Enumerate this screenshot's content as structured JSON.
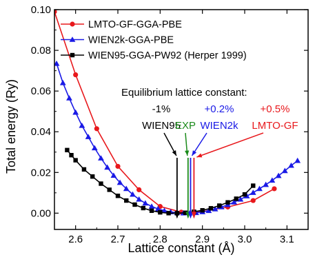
{
  "chart_data": {
    "type": "line",
    "title": "",
    "xlabel": "Lattice constant (Å)",
    "ylabel": "Total energy (Ry)",
    "xlim": [
      2.55,
      3.15
    ],
    "ylim": [
      -0.008,
      0.1
    ],
    "x_ticks": [
      2.6,
      2.7,
      2.8,
      2.9,
      3.0,
      3.1
    ],
    "x_tick_labels": [
      "2.6",
      "2.7",
      "2.8",
      "2.9",
      "3.0",
      "3.1"
    ],
    "y_ticks": [
      0.0,
      0.02,
      0.04,
      0.06,
      0.08,
      0.1
    ],
    "y_tick_labels": [
      "0.00",
      "0.02",
      "0.04",
      "0.06",
      "0.08",
      "0.10"
    ],
    "grid": false,
    "legend_position": "top-left",
    "series": [
      {
        "name": "LMTO-GF-GGA-PBE",
        "color": "#e8181c",
        "marker": "circle",
        "x": [
          2.55,
          2.6,
          2.65,
          2.7,
          2.75,
          2.8,
          2.85,
          2.9,
          2.96,
          3.02,
          3.07
        ],
        "y": [
          0.099,
          0.068,
          0.0415,
          0.023,
          0.0115,
          0.0033,
          0.0005,
          0.0008,
          0.003,
          0.0062,
          0.012
        ]
      },
      {
        "name": "WIEN2k-GGA-PBE",
        "color": "#1a1ae6",
        "marker": "triangle",
        "x": [
          2.555,
          2.57,
          2.585,
          2.6,
          2.615,
          2.63,
          2.645,
          2.66,
          2.675,
          2.69,
          2.705,
          2.72,
          2.735,
          2.75,
          2.765,
          2.78,
          2.795,
          2.81,
          2.825,
          2.84,
          2.855,
          2.87,
          2.885,
          2.9,
          2.915,
          2.93,
          2.945,
          2.96,
          2.975,
          2.99,
          3.005,
          3.02,
          3.035,
          3.05,
          3.065,
          3.08,
          3.095,
          3.11,
          3.125
        ],
        "y": [
          0.0735,
          0.064,
          0.0565,
          0.0495,
          0.043,
          0.0375,
          0.032,
          0.027,
          0.0225,
          0.0185,
          0.015,
          0.012,
          0.0092,
          0.0068,
          0.0049,
          0.0033,
          0.0021,
          0.0012,
          0.0006,
          0.0002,
          0.0,
          0.0,
          0.0002,
          0.0006,
          0.0012,
          0.002,
          0.003,
          0.0041,
          0.0054,
          0.0068,
          0.0084,
          0.0101,
          0.012,
          0.014,
          0.0161,
          0.0184,
          0.0208,
          0.0234,
          0.0258
        ]
      },
      {
        "name": "WIEN95-GGA-PW92 (Herper 1999)",
        "color": "#000000",
        "marker": "square",
        "x": [
          2.58,
          2.59,
          2.6,
          2.62,
          2.64,
          2.66,
          2.68,
          2.7,
          2.72,
          2.74,
          2.76,
          2.78,
          2.8,
          2.82,
          2.84,
          2.86,
          2.88,
          2.9,
          2.92,
          2.94,
          2.96,
          2.98,
          3.0,
          3.02
        ],
        "y": [
          0.031,
          0.0285,
          0.026,
          0.0215,
          0.018,
          0.0145,
          0.0115,
          0.0085,
          0.0062,
          0.0042,
          0.0025,
          0.0012,
          0.0004,
          0.0,
          0.0,
          0.0002,
          0.0007,
          0.0014,
          0.0024,
          0.0037,
          0.0053,
          0.0071,
          0.0092,
          0.0135
        ]
      }
    ],
    "annotations": {
      "heading": "Equilibrium lattice constant:",
      "labels": [
        {
          "id": "wien95",
          "lines": [
            "-1%",
            "WIEN95"
          ],
          "color": "#000000"
        },
        {
          "id": "exp",
          "lines": [
            "EXP"
          ],
          "color": "#1a8a1a"
        },
        {
          "id": "wien2k",
          "lines": [
            "+0.2%",
            "WIEN2k"
          ],
          "color": "#1a1ae6"
        },
        {
          "id": "lmto",
          "lines": [
            "+0.5%",
            "LMTO-GF"
          ],
          "color": "#e8181c"
        }
      ],
      "equilibrium_markers": [
        {
          "id": "wien95",
          "x": 2.84,
          "color": "#000000"
        },
        {
          "id": "exp",
          "x": 2.866,
          "color": "#1a8a1a"
        },
        {
          "id": "wien2k",
          "x": 2.872,
          "color": "#1a1ae6"
        },
        {
          "id": "lmto",
          "x": 2.88,
          "color": "#e8181c"
        }
      ]
    }
  }
}
